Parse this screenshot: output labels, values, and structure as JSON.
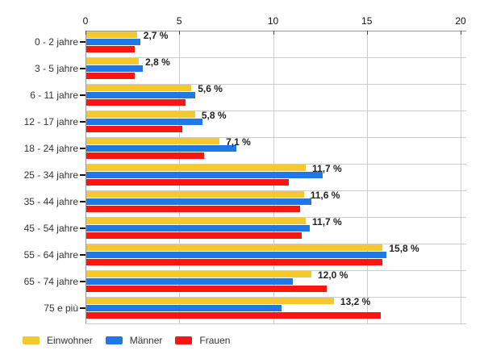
{
  "colors": {
    "einwohner": "#F5C82D",
    "maenner": "#1E78E8",
    "frauen": "#FB1510",
    "gridline": "#CCCCCC",
    "axis": "#999999",
    "text": "#333333"
  },
  "chart_data": {
    "type": "bar",
    "orientation": "horizontal",
    "title": "",
    "categories": [
      "0 - 2 jahre",
      "3 - 5 jahre",
      "6 - 11 jahre",
      "12 - 17 jahre",
      "18 - 24 jahre",
      "25 - 34 jahre",
      "35 - 44 jahre",
      "45 - 54 jahre",
      "55 - 64 jahre",
      "65 - 74 jahre",
      "75 e più"
    ],
    "series": [
      {
        "name": "Einwohner",
        "color": "#F5C82D",
        "values": [
          2.7,
          2.8,
          5.6,
          5.8,
          7.1,
          11.7,
          11.6,
          11.7,
          15.8,
          12.0,
          13.2
        ]
      },
      {
        "name": "Männer",
        "color": "#1E78E8",
        "values": [
          2.9,
          3.0,
          5.8,
          6.2,
          8.0,
          12.6,
          12.0,
          11.9,
          16.0,
          11.0,
          10.4
        ]
      },
      {
        "name": "Frauen",
        "color": "#FB1510",
        "values": [
          2.6,
          2.6,
          5.3,
          5.1,
          6.3,
          10.8,
          11.4,
          11.5,
          15.8,
          12.8,
          15.7
        ]
      }
    ],
    "bar_labels": [
      "2,7 %",
      "2,8 %",
      "5,6 %",
      "5,8 %",
      "7,1 %",
      "11,7 %",
      "11,6 %",
      "11,7 %",
      "15,8 %",
      "12,0 %",
      "13,2 %"
    ],
    "x_ticks": [
      "0",
      "5",
      "10",
      "15",
      "20"
    ],
    "x_tick_values": [
      0,
      5,
      10,
      15,
      20
    ],
    "xlim": [
      0,
      20.3
    ],
    "grid": true,
    "legend_position": "bottom"
  }
}
